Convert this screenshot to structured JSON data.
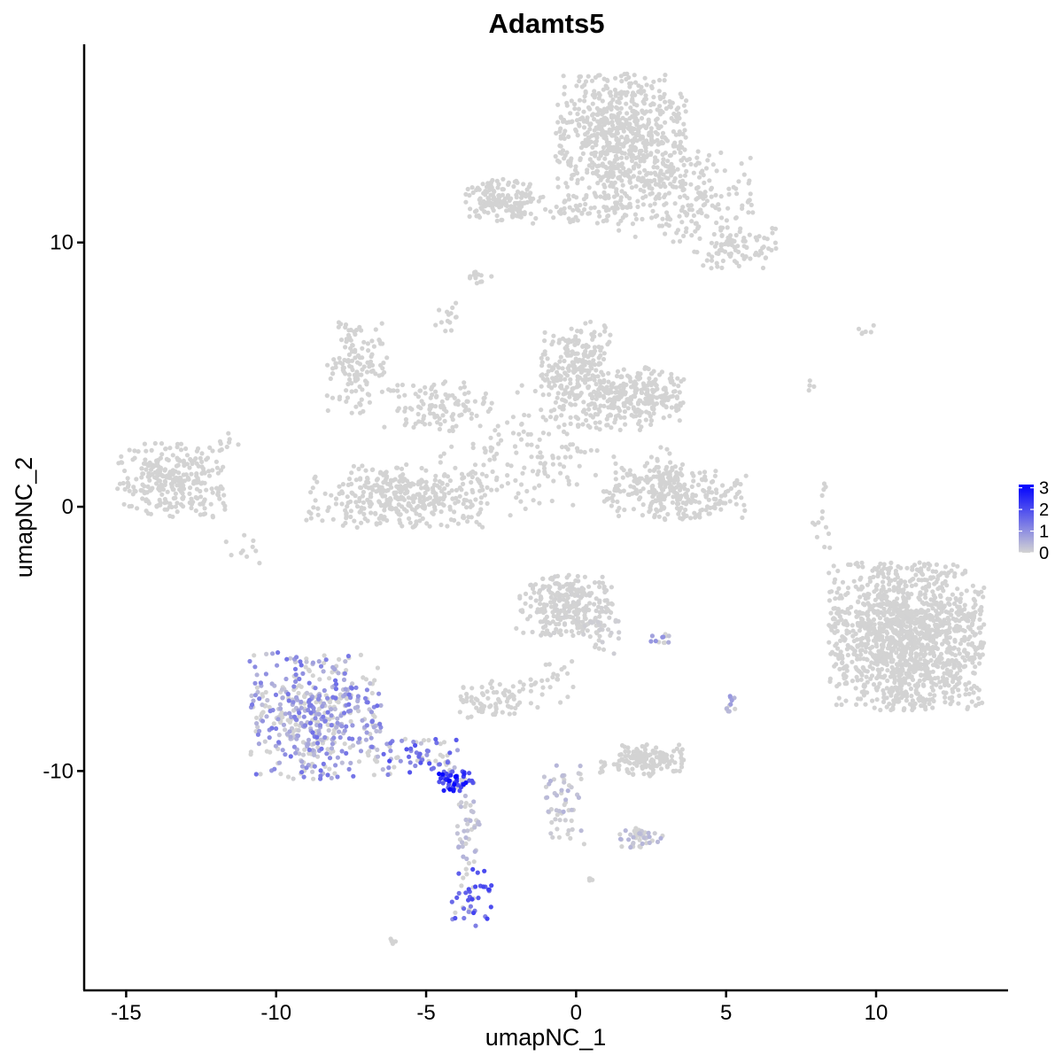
{
  "chart_data": {
    "type": "scatter",
    "title": "Adamts5",
    "xlabel": "umapNC_1",
    "ylabel": "umapNC_2",
    "xlim": [
      -16.4,
      14.4
    ],
    "ylim": [
      -18.3,
      17.5
    ],
    "x_ticks": [
      {
        "value": -15,
        "label": "-15"
      },
      {
        "value": -10,
        "label": "-10"
      },
      {
        "value": -5,
        "label": "-5"
      },
      {
        "value": 0,
        "label": "0"
      },
      {
        "value": 5,
        "label": "5"
      },
      {
        "value": 10,
        "label": "10"
      }
    ],
    "y_ticks": [
      {
        "value": -10,
        "label": "-10"
      },
      {
        "value": 0,
        "label": "0"
      },
      {
        "value": 10,
        "label": "10"
      }
    ],
    "grid": false,
    "legend": {
      "placement": "right",
      "type": "colorbar",
      "min": 0,
      "max": 3.15,
      "ticks": [
        {
          "value": 0,
          "label": "0"
        },
        {
          "value": 1,
          "label": "1"
        },
        {
          "value": 2,
          "label": "2"
        },
        {
          "value": 3,
          "label": "3"
        }
      ],
      "color_low": "#d3d3d3",
      "color_high": "#0000ff"
    },
    "clusters": [
      {
        "id": "c1",
        "center": [
          -13.5,
          1.0
        ],
        "spread": [
          0.9,
          0.7
        ],
        "n": 300,
        "expr": [
          0,
          0
        ]
      },
      {
        "id": "c2",
        "center": [
          -7.3,
          5.3
        ],
        "spread": [
          0.5,
          0.9
        ],
        "n": 130,
        "expr": [
          0,
          0
        ]
      },
      {
        "id": "c3",
        "center": [
          -4.6,
          3.8
        ],
        "spread": [
          0.9,
          0.5
        ],
        "n": 110,
        "expr": [
          0,
          0
        ]
      },
      {
        "id": "c4",
        "center": [
          -6.0,
          0.4
        ],
        "spread": [
          1.5,
          0.6
        ],
        "n": 380,
        "expr": [
          0,
          0
        ]
      },
      {
        "id": "c5",
        "center": [
          -1.5,
          2.0
        ],
        "spread": [
          1.7,
          1.3
        ],
        "n": 150,
        "expr": [
          0,
          0
        ]
      },
      {
        "id": "c6",
        "center": [
          0.0,
          5.0
        ],
        "spread": [
          0.6,
          1.0
        ],
        "n": 280,
        "expr": [
          0,
          0
        ]
      },
      {
        "id": "c7",
        "center": [
          2.0,
          4.1
        ],
        "spread": [
          0.8,
          0.6
        ],
        "n": 260,
        "expr": [
          0,
          0
        ]
      },
      {
        "id": "c8",
        "center": [
          -2.5,
          11.6
        ],
        "spread": [
          0.6,
          0.4
        ],
        "n": 140,
        "expr": [
          0,
          0
        ]
      },
      {
        "id": "c9",
        "center": [
          -0.3,
          11.3
        ],
        "spread": [
          1.5,
          0.3
        ],
        "n": 90,
        "expr": [
          0,
          0
        ]
      },
      {
        "id": "c10",
        "center": [
          1.5,
          14.2
        ],
        "spread": [
          1.1,
          1.1
        ],
        "n": 650,
        "expr": [
          0,
          0
        ]
      },
      {
        "id": "c11",
        "center": [
          3.3,
          11.8
        ],
        "spread": [
          1.3,
          0.9
        ],
        "n": 260,
        "expr": [
          0,
          0
        ]
      },
      {
        "id": "c12",
        "center": [
          5.3,
          9.8
        ],
        "spread": [
          0.7,
          0.4
        ],
        "n": 90,
        "expr": [
          0,
          0
        ]
      },
      {
        "id": "c13",
        "center": [
          -3.2,
          8.7
        ],
        "spread": [
          0.2,
          0.15
        ],
        "n": 12,
        "expr": [
          0,
          0
        ]
      },
      {
        "id": "c14",
        "center": [
          -4.3,
          7.2
        ],
        "spread": [
          0.2,
          0.3
        ],
        "n": 14,
        "expr": [
          0,
          0
        ]
      },
      {
        "id": "c15",
        "center": [
          3.3,
          0.5
        ],
        "spread": [
          1.2,
          0.5
        ],
        "n": 260,
        "expr": [
          0,
          0
        ]
      },
      {
        "id": "c16",
        "center": [
          2.9,
          1.1
        ],
        "spread": [
          0.4,
          0.6
        ],
        "n": 40,
        "expr": [
          0,
          0
        ]
      },
      {
        "id": "c17",
        "center": [
          -0.4,
          -3.7
        ],
        "spread": [
          0.8,
          0.6
        ],
        "n": 270,
        "expr": [
          0,
          0.04
        ]
      },
      {
        "id": "c18",
        "center": [
          0.8,
          -4.6
        ],
        "spread": [
          0.4,
          0.5
        ],
        "n": 40,
        "expr": [
          0,
          0.1
        ]
      },
      {
        "id": "c19",
        "center": [
          -2.7,
          -7.3
        ],
        "spread": [
          0.6,
          0.35
        ],
        "n": 80,
        "expr": [
          0,
          0
        ]
      },
      {
        "id": "c20",
        "center": [
          -0.9,
          -6.6
        ],
        "spread": [
          0.4,
          0.5
        ],
        "n": 25,
        "expr": [
          0,
          0
        ]
      },
      {
        "id": "c21",
        "center": [
          11.0,
          -4.9
        ],
        "spread": [
          1.3,
          1.4
        ],
        "n": 1400,
        "expr": [
          0,
          0.01
        ]
      },
      {
        "id": "c22",
        "center": [
          8.2,
          -0.4
        ],
        "spread": [
          0.2,
          0.7
        ],
        "n": 14,
        "expr": [
          0,
          0
        ]
      },
      {
        "id": "c23",
        "center": [
          9.7,
          6.7
        ],
        "spread": [
          0.3,
          0.1
        ],
        "n": 6,
        "expr": [
          0,
          0
        ]
      },
      {
        "id": "c24",
        "center": [
          7.8,
          4.6
        ],
        "spread": [
          0.1,
          0.2
        ],
        "n": 4,
        "expr": [
          0,
          0
        ]
      },
      {
        "id": "c25",
        "center": [
          2.2,
          -9.6
        ],
        "spread": [
          0.7,
          0.3
        ],
        "n": 150,
        "expr": [
          0,
          0
        ]
      },
      {
        "id": "c26",
        "center": [
          -0.5,
          -11.2
        ],
        "spread": [
          0.4,
          0.8
        ],
        "n": 55,
        "expr": [
          0,
          0.5
        ]
      },
      {
        "id": "c27",
        "center": [
          2.2,
          -12.5
        ],
        "spread": [
          0.4,
          0.2
        ],
        "n": 45,
        "expr": [
          0,
          0.5
        ]
      },
      {
        "id": "c28",
        "center": [
          2.8,
          -5.0
        ],
        "spread": [
          0.2,
          0.1
        ],
        "n": 12,
        "expr": [
          0.2,
          1.6
        ]
      },
      {
        "id": "c29",
        "center": [
          5.1,
          -7.5
        ],
        "spread": [
          0.1,
          0.3
        ],
        "n": 12,
        "expr": [
          0.2,
          1.4
        ]
      },
      {
        "id": "c30",
        "center": [
          -8.7,
          -7.9
        ],
        "spread": [
          1.1,
          1.2
        ],
        "n": 500,
        "expr": [
          0,
          1.5
        ]
      },
      {
        "id": "c31",
        "center": [
          -5.3,
          -9.5
        ],
        "spread": [
          0.9,
          0.4
        ],
        "n": 80,
        "expr": [
          0.3,
          2.0
        ]
      },
      {
        "id": "c32",
        "center": [
          -4.0,
          -10.4
        ],
        "spread": [
          0.35,
          0.2
        ],
        "n": 60,
        "expr": [
          1.8,
          3.1
        ]
      },
      {
        "id": "c33",
        "center": [
          -3.6,
          -12.2
        ],
        "spread": [
          0.2,
          0.8
        ],
        "n": 40,
        "expr": [
          0,
          0.5
        ]
      },
      {
        "id": "c34",
        "center": [
          -3.5,
          -14.8
        ],
        "spread": [
          0.35,
          0.6
        ],
        "n": 45,
        "expr": [
          1.0,
          2.3
        ]
      },
      {
        "id": "c35",
        "center": [
          -6.1,
          -16.5
        ],
        "spread": [
          0.1,
          0.08
        ],
        "n": 5,
        "expr": [
          0,
          0
        ]
      },
      {
        "id": "c36",
        "center": [
          0.5,
          -14.1
        ],
        "spread": [
          0.1,
          0.08
        ],
        "n": 4,
        "expr": [
          0,
          0
        ]
      },
      {
        "id": "c37",
        "center": [
          -10.9,
          -1.6
        ],
        "spread": [
          0.4,
          0.3
        ],
        "n": 10,
        "expr": [
          0,
          0
        ]
      },
      {
        "id": "c38",
        "center": [
          -11.8,
          2.5
        ],
        "spread": [
          0.3,
          0.2
        ],
        "n": 8,
        "expr": [
          0,
          0
        ]
      }
    ]
  }
}
